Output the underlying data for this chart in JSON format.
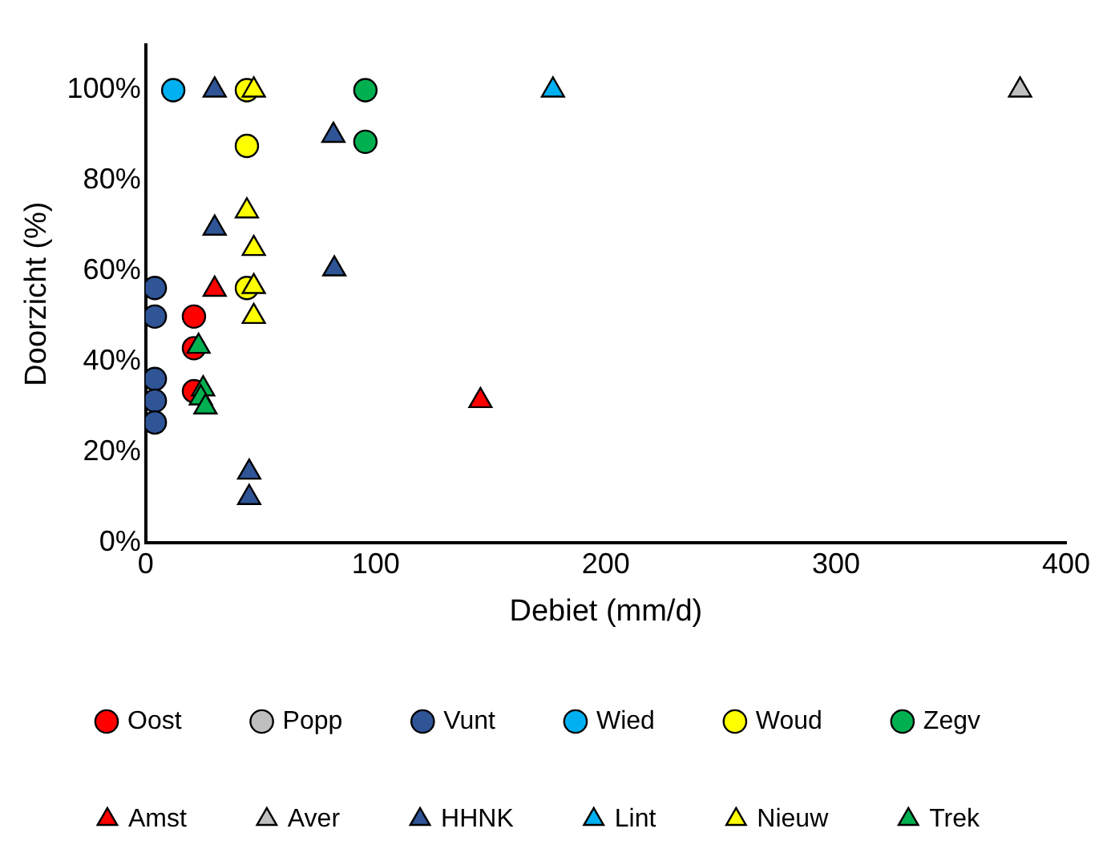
{
  "chart_data": {
    "type": "scatter",
    "xlabel": "Debiet (mm/d)",
    "ylabel": "Doorzicht (%)",
    "xlim": [
      0,
      400
    ],
    "xticks": [
      0,
      100,
      200,
      300,
      400
    ],
    "ylim": [
      0,
      110
    ],
    "yticks": [
      {
        "value": 0,
        "label": "0%"
      },
      {
        "value": 20,
        "label": "20%"
      },
      {
        "value": 40,
        "label": "40%"
      },
      {
        "value": 60,
        "label": "60%"
      },
      {
        "value": 80,
        "label": "80%"
      },
      {
        "value": 100,
        "label": "100%"
      }
    ],
    "grid": false,
    "legend": "bottom",
    "series": [
      {
        "name": "Oost",
        "color": "#ff0000",
        "marker": "circle",
        "x": [
          21,
          21,
          21
        ],
        "values": [
          50,
          43,
          33.5
        ]
      },
      {
        "name": "Popp",
        "color": "#bfbfbf",
        "marker": "circle"
      },
      {
        "name": "Vunt",
        "color": "#2f5597",
        "marker": "circle",
        "x": [
          4,
          4,
          4,
          4,
          4
        ],
        "values": [
          56.3,
          50,
          36.2,
          31.4,
          26.6
        ]
      },
      {
        "name": "Wied",
        "color": "#00b0f0",
        "marker": "circle",
        "x": [
          12
        ],
        "values": [
          100
        ]
      },
      {
        "name": "Woud",
        "color": "#ffff00",
        "marker": "circle",
        "x": [
          44,
          44,
          44
        ],
        "values": [
          100,
          87.7,
          56.3
        ]
      },
      {
        "name": "Zegv",
        "color": "#00b050",
        "marker": "circle",
        "x": [
          95.5,
          95.5
        ],
        "values": [
          100,
          88.6
        ]
      },
      {
        "name": "Amst",
        "color": "#ff0000",
        "marker": "triangle",
        "x": [
          30,
          145.5
        ],
        "values": [
          56,
          31.4
        ]
      },
      {
        "name": "Aver",
        "color": "#bfbfbf",
        "marker": "triangle",
        "x": [
          380
        ],
        "values": [
          100
        ]
      },
      {
        "name": "HHNK",
        "color": "#2f5597",
        "marker": "triangle",
        "x": [
          30,
          81.6,
          30,
          82,
          45,
          45
        ],
        "values": [
          100,
          90,
          69.5,
          60.5,
          15.6,
          10
        ]
      },
      {
        "name": "Lint",
        "color": "#00b0f0",
        "marker": "triangle",
        "x": [
          177
        ],
        "values": [
          100
        ]
      },
      {
        "name": "Nieuw",
        "color": "#ffff00",
        "marker": "triangle",
        "x": [
          47,
          44,
          47,
          47,
          47
        ],
        "values": [
          100,
          73.3,
          65,
          56.6,
          50
        ]
      },
      {
        "name": "Trek",
        "color": "#00b050",
        "marker": "triangle",
        "x": [
          23,
          25,
          24,
          26
        ],
        "values": [
          43.4,
          34,
          32,
          30
        ]
      }
    ]
  }
}
